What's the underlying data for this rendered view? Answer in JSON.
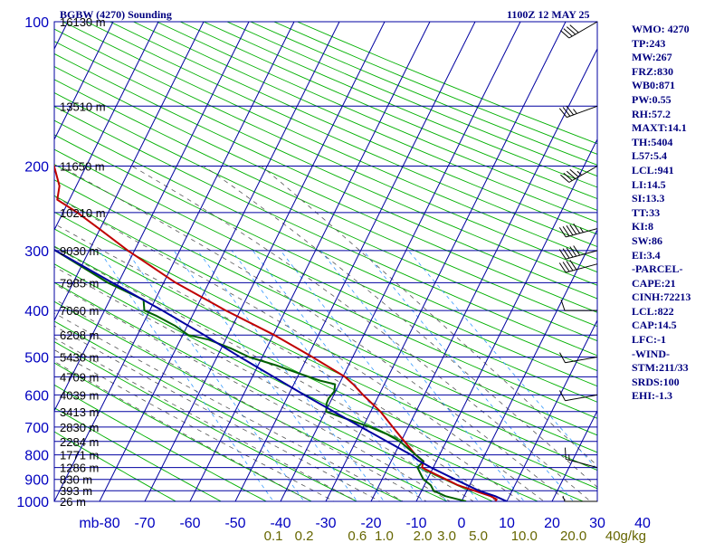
{
  "header": {
    "station": "BGBW (4270) Sounding",
    "time": "1100Z 12 MAY 25"
  },
  "indices": [
    "WMO: 4270",
    "TP:243",
    "MW:267",
    "FRZ:830",
    "WB0:871",
    "PW:0.55",
    "RH:57.2",
    "MAXT:14.1",
    "TH:5404",
    "L57:5.4",
    "LCL:941",
    "LI:14.5",
    "SI:13.3",
    "TT:33",
    "KI:8",
    "SW:86",
    "EI:3.4",
    "-PARCEL-",
    "CAPE:21",
    "CINH:72213",
    "LCL:822",
    "CAP:14.5",
    "LFC:-1",
    "-WIND-",
    "STM:211/33",
    "SRDS:100",
    "EHI:-1.3"
  ],
  "colors": {
    "grid": "#0000a0",
    "temperature": "#c00000",
    "dewpoint": "#006000",
    "parcel": "#0000a0",
    "dry_adiabat": "#00b000",
    "mixing_ratio": "#3399ff",
    "moist_adiabat": "#555555",
    "axis_text": "#0000c0",
    "mixing_text": "#666600",
    "wind": "#000000"
  },
  "chart_data": {
    "type": "line",
    "subtype": "skew-t log-p",
    "title": "BGBW (4270) Sounding",
    "pressure_axis": {
      "unit": "mb",
      "range": [
        1000,
        100
      ],
      "log_scale": true,
      "ticks": [
        100,
        200,
        300,
        400,
        500,
        600,
        700,
        800,
        900,
        1000
      ]
    },
    "temperature_axis": {
      "range": [
        -80,
        40
      ],
      "tick_labels": [
        "mb-80",
        "-70",
        "-60",
        "-50",
        "-40",
        "-30",
        "-20",
        "-10",
        "0",
        "10",
        "20",
        "30",
        "40"
      ]
    },
    "mixing_ratio_labels": [
      "0.1",
      "0.2",
      "0.6",
      "1.0",
      "2.0",
      "3.0",
      "5.0",
      "10.0",
      "20.0",
      "40g/kg"
    ],
    "height_labels": [
      {
        "p": 100,
        "label": "16130 m"
      },
      {
        "p": 150,
        "label": "13510 m"
      },
      {
        "p": 200,
        "label": "11650 m"
      },
      {
        "p": 250,
        "label": "10210 m"
      },
      {
        "p": 300,
        "label": "9030 m"
      },
      {
        "p": 350,
        "label": "7985 m"
      },
      {
        "p": 400,
        "label": "7060 m"
      },
      {
        "p": 450,
        "label": "6208 m"
      },
      {
        "p": 500,
        "label": "5430 m"
      },
      {
        "p": 550,
        "label": "4709 m"
      },
      {
        "p": 600,
        "label": "4039 m"
      },
      {
        "p": 650,
        "label": "3413 m"
      },
      {
        "p": 700,
        "label": "2830 m"
      },
      {
        "p": 750,
        "label": "2284 m"
      },
      {
        "p": 800,
        "label": "1771 m"
      },
      {
        "p": 850,
        "label": "1286 m"
      },
      {
        "p": 900,
        "label": "830 m"
      },
      {
        "p": 950,
        "label": "393 m"
      },
      {
        "p": 1000,
        "label": "26 m"
      }
    ],
    "series": [
      {
        "key": "temperature",
        "points": [
          [
            1000,
            7.5
          ],
          [
            990,
            8
          ],
          [
            975,
            7
          ],
          [
            950,
            4
          ],
          [
            925,
            1
          ],
          [
            900,
            -1
          ],
          [
            875,
            -3
          ],
          [
            850,
            -5
          ],
          [
            825,
            -4
          ],
          [
            800,
            -5
          ],
          [
            750,
            -6
          ],
          [
            700,
            -7
          ],
          [
            650,
            -8
          ],
          [
            600,
            -10
          ],
          [
            570,
            -11
          ],
          [
            550,
            -12
          ],
          [
            500,
            -17
          ],
          [
            450,
            -23
          ],
          [
            400,
            -31
          ],
          [
            350,
            -39
          ],
          [
            300,
            -46
          ],
          [
            270,
            -50
          ],
          [
            250,
            -53
          ],
          [
            235,
            -56
          ],
          [
            220,
            -54
          ],
          [
            200,
            -53
          ],
          [
            175,
            -52
          ],
          [
            150,
            -51
          ],
          [
            125,
            -52
          ],
          [
            100,
            -51
          ]
        ]
      },
      {
        "key": "dewpoint",
        "points": [
          [
            1000,
            1
          ],
          [
            975,
            -3
          ],
          [
            950,
            -5
          ],
          [
            925,
            -5
          ],
          [
            900,
            -6
          ],
          [
            875,
            -6
          ],
          [
            850,
            -6
          ],
          [
            825,
            -4
          ],
          [
            800,
            -5
          ],
          [
            775,
            -6
          ],
          [
            750,
            -7
          ],
          [
            725,
            -9
          ],
          [
            700,
            -12
          ],
          [
            675,
            -16
          ],
          [
            650,
            -20
          ],
          [
            625,
            -19
          ],
          [
            610,
            -18
          ],
          [
            600,
            -17
          ],
          [
            590,
            -16
          ],
          [
            570,
            -15
          ],
          [
            560,
            -18
          ],
          [
            540,
            -22
          ],
          [
            520,
            -26
          ],
          [
            500,
            -31
          ],
          [
            480,
            -34
          ],
          [
            460,
            -38
          ],
          [
            450,
            -42
          ],
          [
            430,
            -44
          ],
          [
            410,
            -47
          ],
          [
            400,
            -49
          ],
          [
            380,
            -48
          ],
          [
            370,
            -50
          ],
          [
            350,
            -54
          ],
          [
            300,
            -62
          ],
          [
            270,
            -66
          ],
          [
            250,
            -70
          ],
          [
            225,
            -75
          ],
          [
            200,
            -85
          ]
        ]
      },
      {
        "key": "parcel",
        "points": [
          [
            1000,
            10
          ],
          [
            975,
            8
          ],
          [
            950,
            5
          ],
          [
            900,
            1
          ],
          [
            850,
            -3
          ],
          [
            822,
            -5
          ],
          [
            800,
            -6
          ],
          [
            700,
            -14
          ],
          [
            600,
            -23
          ],
          [
            500,
            -33
          ],
          [
            450,
            -38.5
          ],
          [
            400,
            -45
          ],
          [
            350,
            -53
          ],
          [
            300,
            -62
          ],
          [
            250,
            -73
          ],
          [
            200,
            -86
          ]
        ]
      }
    ],
    "wind_barbs": [
      {
        "p": 1000,
        "dir": 270,
        "spd": 5
      },
      {
        "p": 850,
        "dir": 285,
        "spd": 15
      },
      {
        "p": 600,
        "dir": 260,
        "spd": 10
      },
      {
        "p": 500,
        "dir": 260,
        "spd": 10
      },
      {
        "p": 400,
        "dir": 270,
        "spd": 10
      },
      {
        "p": 320,
        "dir": 255,
        "spd": 40
      },
      {
        "p": 300,
        "dir": 255,
        "spd": 50
      },
      {
        "p": 270,
        "dir": 255,
        "spd": 55
      },
      {
        "p": 200,
        "dir": 240,
        "spd": 45
      },
      {
        "p": 150,
        "dir": 250,
        "spd": 35
      },
      {
        "p": 100,
        "dir": 240,
        "spd": 40
      }
    ]
  }
}
